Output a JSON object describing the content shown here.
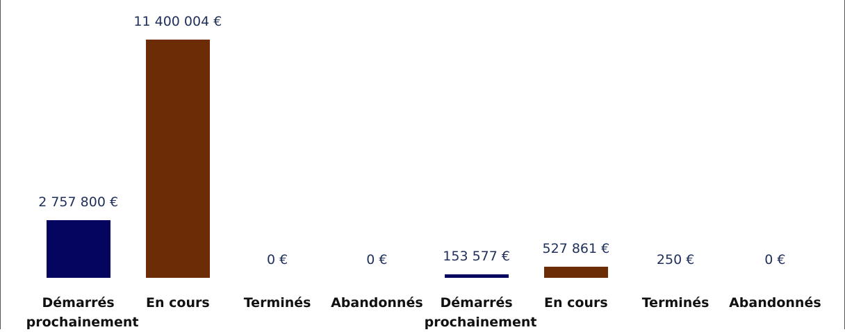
{
  "chart_data": {
    "type": "bar",
    "categories": [
      "Démarrés prochainement",
      "En cours",
      "Terminés",
      "Abandonnés",
      "Démarrés prochainement",
      "En cours",
      "Terminés",
      "Abandonnés"
    ],
    "values": [
      2757800,
      11400004,
      0,
      0,
      153577,
      527861,
      250,
      0
    ],
    "value_labels": [
      "2 757 800 €",
      "11 400 004 €",
      "0 €",
      "0 €",
      "153 577 €",
      "527 861 €",
      "250 €",
      "0 €"
    ],
    "colors": [
      "#05055f",
      "#6b2c06",
      "#2e7d32",
      "#9e9e9e",
      "#05055f",
      "#6b2c06",
      "#2e7d32",
      "#9e9e9e"
    ]
  }
}
